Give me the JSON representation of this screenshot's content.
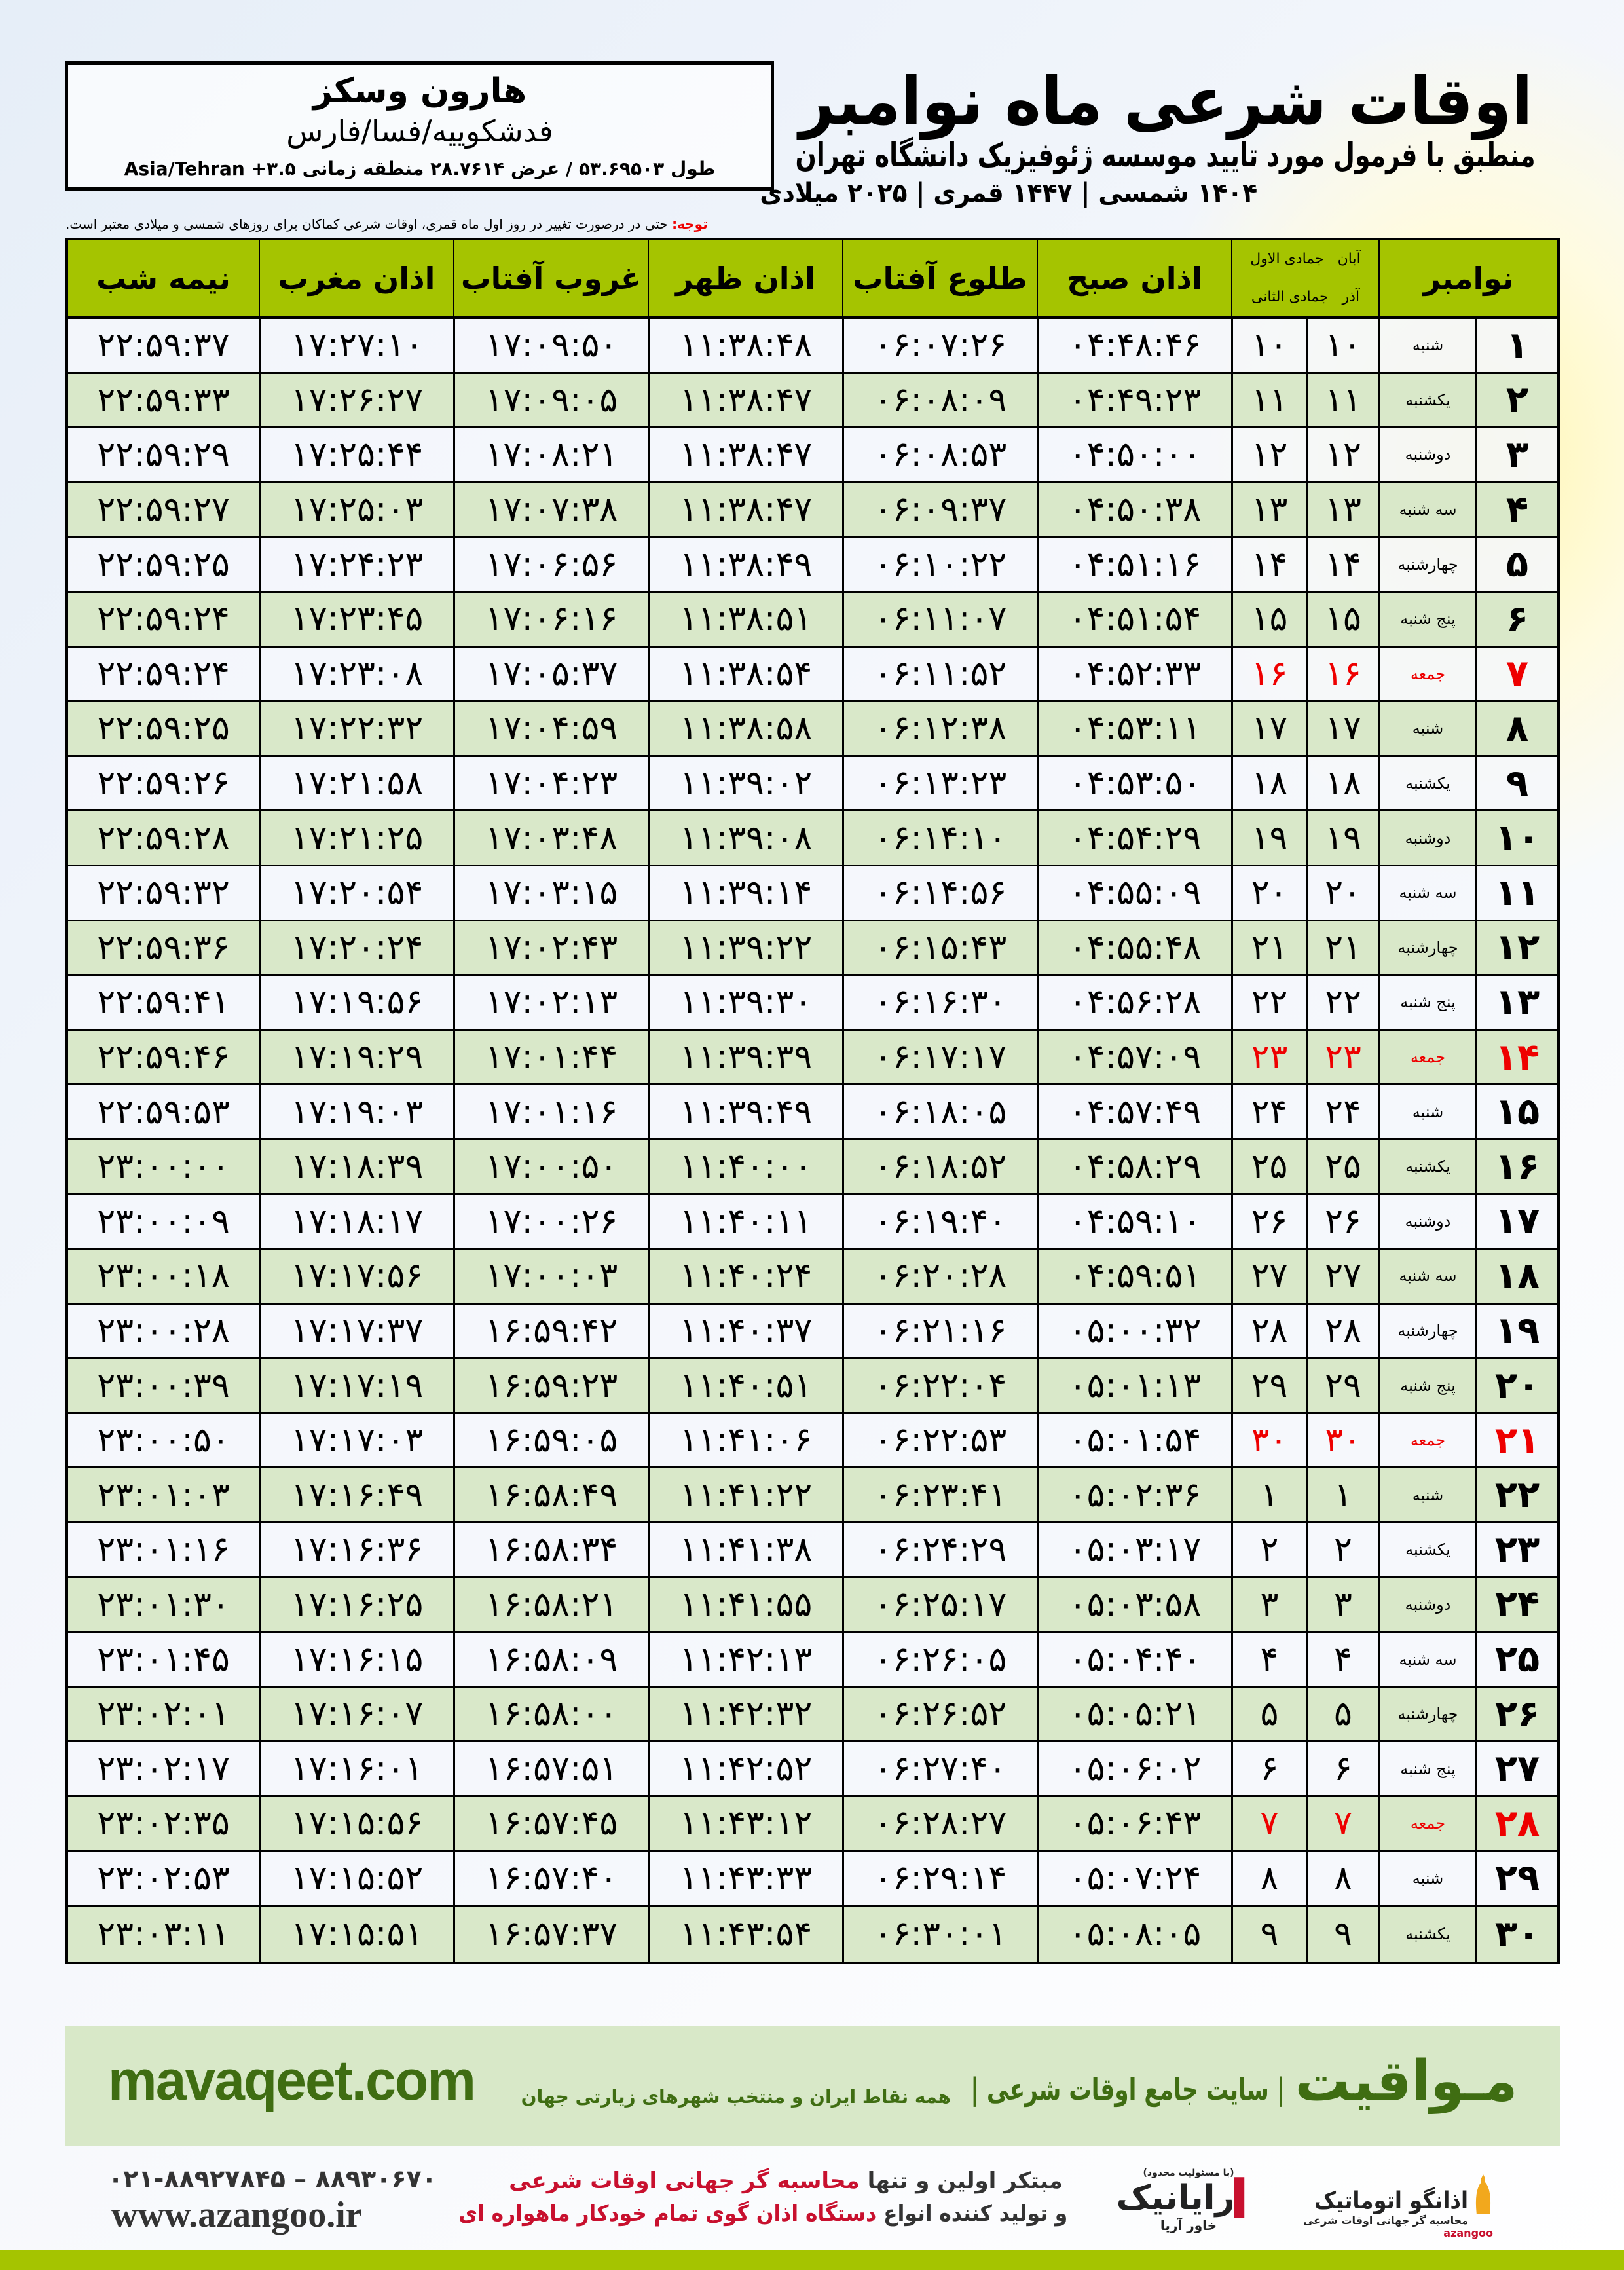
{
  "header": {
    "title": "اوقات شرعی ماه نوامبر",
    "subtitle": "منطبق با فرمول مورد تایید موسسه ژئوفیزیک دانشگاه تهران",
    "years": "۱۴۰۴ شمسی | ۱۴۴۷ قمری | ۲۰۲۵ میلادی"
  },
  "location": {
    "name": "هارون وسکز",
    "place": "فدشکوییه/فسا/فارس",
    "coords": "طول ۵۳.۶۹۵۰۳ / عرض ۲۸.۷۶۱۴ منطقه زمانی ۳.۵+ Asia/Tehran"
  },
  "note": {
    "label": "توجه:",
    "text": " حتی در درصورت تغییر در روز اول ماه قمری، اوقات شرعی کماکان برای روزهای شمسی و میلادی معتبر است."
  },
  "colors": {
    "header_green": "#a5c400",
    "row_alt": "#d9e8c9",
    "friday": "#ee0000",
    "brand_green": "#3f6d12"
  },
  "table": {
    "headers": {
      "day": "نوامبر",
      "solar_top": "آبان",
      "lunar_top": "جمادی الاول",
      "solar_bottom": "آذر",
      "lunar_bottom": "جمادی الثانی",
      "fajr": "اذان صبح",
      "sunrise": "طلوع آفتاب",
      "dhuhr": "اذان ظهر",
      "sunset": "غروب آفتاب",
      "maghrib": "اذان مغرب",
      "midnight": "نیمه شب"
    },
    "rows": [
      {
        "day": "۱",
        "weekday": "شنبه",
        "solar": "۱۰",
        "lunar": "۱۰",
        "fajr": "۰۴:۴۸:۴۶",
        "sunrise": "۰۶:۰۷:۲۶",
        "dhuhr": "۱۱:۳۸:۴۸",
        "sunset": "۱۷:۰۹:۵۰",
        "maghrib": "۱۷:۲۷:۱۰",
        "midnight": "۲۲:۵۹:۳۷",
        "friday": false
      },
      {
        "day": "۲",
        "weekday": "یکشنبه",
        "solar": "۱۱",
        "lunar": "۱۱",
        "fajr": "۰۴:۴۹:۲۳",
        "sunrise": "۰۶:۰۸:۰۹",
        "dhuhr": "۱۱:۳۸:۴۷",
        "sunset": "۱۷:۰۹:۰۵",
        "maghrib": "۱۷:۲۶:۲۷",
        "midnight": "۲۲:۵۹:۳۳",
        "friday": false
      },
      {
        "day": "۳",
        "weekday": "دوشنبه",
        "solar": "۱۲",
        "lunar": "۱۲",
        "fajr": "۰۴:۵۰:۰۰",
        "sunrise": "۰۶:۰۸:۵۳",
        "dhuhr": "۱۱:۳۸:۴۷",
        "sunset": "۱۷:۰۸:۲۱",
        "maghrib": "۱۷:۲۵:۴۴",
        "midnight": "۲۲:۵۹:۲۹",
        "friday": false
      },
      {
        "day": "۴",
        "weekday": "سه شنبه",
        "solar": "۱۳",
        "lunar": "۱۳",
        "fajr": "۰۴:۵۰:۳۸",
        "sunrise": "۰۶:۰۹:۳۷",
        "dhuhr": "۱۱:۳۸:۴۷",
        "sunset": "۱۷:۰۷:۳۸",
        "maghrib": "۱۷:۲۵:۰۳",
        "midnight": "۲۲:۵۹:۲۷",
        "friday": false
      },
      {
        "day": "۵",
        "weekday": "چهارشنبه",
        "solar": "۱۴",
        "lunar": "۱۴",
        "fajr": "۰۴:۵۱:۱۶",
        "sunrise": "۰۶:۱۰:۲۲",
        "dhuhr": "۱۱:۳۸:۴۹",
        "sunset": "۱۷:۰۶:۵۶",
        "maghrib": "۱۷:۲۴:۲۳",
        "midnight": "۲۲:۵۹:۲۵",
        "friday": false
      },
      {
        "day": "۶",
        "weekday": "پنج شنبه",
        "solar": "۱۵",
        "lunar": "۱۵",
        "fajr": "۰۴:۵۱:۵۴",
        "sunrise": "۰۶:۱۱:۰۷",
        "dhuhr": "۱۱:۳۸:۵۱",
        "sunset": "۱۷:۰۶:۱۶",
        "maghrib": "۱۷:۲۳:۴۵",
        "midnight": "۲۲:۵۹:۲۴",
        "friday": false
      },
      {
        "day": "۷",
        "weekday": "جمعه",
        "solar": "۱۶",
        "lunar": "۱۶",
        "fajr": "۰۴:۵۲:۳۳",
        "sunrise": "۰۶:۱۱:۵۲",
        "dhuhr": "۱۱:۳۸:۵۴",
        "sunset": "۱۷:۰۵:۳۷",
        "maghrib": "۱۷:۲۳:۰۸",
        "midnight": "۲۲:۵۹:۲۴",
        "friday": true
      },
      {
        "day": "۸",
        "weekday": "شنبه",
        "solar": "۱۷",
        "lunar": "۱۷",
        "fajr": "۰۴:۵۳:۱۱",
        "sunrise": "۰۶:۱۲:۳۸",
        "dhuhr": "۱۱:۳۸:۵۸",
        "sunset": "۱۷:۰۴:۵۹",
        "maghrib": "۱۷:۲۲:۳۲",
        "midnight": "۲۲:۵۹:۲۵",
        "friday": false
      },
      {
        "day": "۹",
        "weekday": "یکشنبه",
        "solar": "۱۸",
        "lunar": "۱۸",
        "fajr": "۰۴:۵۳:۵۰",
        "sunrise": "۰۶:۱۳:۲۳",
        "dhuhr": "۱۱:۳۹:۰۲",
        "sunset": "۱۷:۰۴:۲۳",
        "maghrib": "۱۷:۲۱:۵۸",
        "midnight": "۲۲:۵۹:۲۶",
        "friday": false
      },
      {
        "day": "۱۰",
        "weekday": "دوشنبه",
        "solar": "۱۹",
        "lunar": "۱۹",
        "fajr": "۰۴:۵۴:۲۹",
        "sunrise": "۰۶:۱۴:۱۰",
        "dhuhr": "۱۱:۳۹:۰۸",
        "sunset": "۱۷:۰۳:۴۸",
        "maghrib": "۱۷:۲۱:۲۵",
        "midnight": "۲۲:۵۹:۲۸",
        "friday": false
      },
      {
        "day": "۱۱",
        "weekday": "سه شنبه",
        "solar": "۲۰",
        "lunar": "۲۰",
        "fajr": "۰۴:۵۵:۰۹",
        "sunrise": "۰۶:۱۴:۵۶",
        "dhuhr": "۱۱:۳۹:۱۴",
        "sunset": "۱۷:۰۳:۱۵",
        "maghrib": "۱۷:۲۰:۵۴",
        "midnight": "۲۲:۵۹:۳۲",
        "friday": false
      },
      {
        "day": "۱۲",
        "weekday": "چهارشنبه",
        "solar": "۲۱",
        "lunar": "۲۱",
        "fajr": "۰۴:۵۵:۴۸",
        "sunrise": "۰۶:۱۵:۴۳",
        "dhuhr": "۱۱:۳۹:۲۲",
        "sunset": "۱۷:۰۲:۴۳",
        "maghrib": "۱۷:۲۰:۲۴",
        "midnight": "۲۲:۵۹:۳۶",
        "friday": false
      },
      {
        "day": "۱۳",
        "weekday": "پنج شنبه",
        "solar": "۲۲",
        "lunar": "۲۲",
        "fajr": "۰۴:۵۶:۲۸",
        "sunrise": "۰۶:۱۶:۳۰",
        "dhuhr": "۱۱:۳۹:۳۰",
        "sunset": "۱۷:۰۲:۱۳",
        "maghrib": "۱۷:۱۹:۵۶",
        "midnight": "۲۲:۵۹:۴۱",
        "friday": false
      },
      {
        "day": "۱۴",
        "weekday": "جمعه",
        "solar": "۲۳",
        "lunar": "۲۳",
        "fajr": "۰۴:۵۷:۰۹",
        "sunrise": "۰۶:۱۷:۱۷",
        "dhuhr": "۱۱:۳۹:۳۹",
        "sunset": "۱۷:۰۱:۴۴",
        "maghrib": "۱۷:۱۹:۲۹",
        "midnight": "۲۲:۵۹:۴۶",
        "friday": true
      },
      {
        "day": "۱۵",
        "weekday": "شنبه",
        "solar": "۲۴",
        "lunar": "۲۴",
        "fajr": "۰۴:۵۷:۴۹",
        "sunrise": "۰۶:۱۸:۰۵",
        "dhuhr": "۱۱:۳۹:۴۹",
        "sunset": "۱۷:۰۱:۱۶",
        "maghrib": "۱۷:۱۹:۰۳",
        "midnight": "۲۲:۵۹:۵۳",
        "friday": false
      },
      {
        "day": "۱۶",
        "weekday": "یکشنبه",
        "solar": "۲۵",
        "lunar": "۲۵",
        "fajr": "۰۴:۵۸:۲۹",
        "sunrise": "۰۶:۱۸:۵۲",
        "dhuhr": "۱۱:۴۰:۰۰",
        "sunset": "۱۷:۰۰:۵۰",
        "maghrib": "۱۷:۱۸:۳۹",
        "midnight": "۲۳:۰۰:۰۰",
        "friday": false
      },
      {
        "day": "۱۷",
        "weekday": "دوشنبه",
        "solar": "۲۶",
        "lunar": "۲۶",
        "fajr": "۰۴:۵۹:۱۰",
        "sunrise": "۰۶:۱۹:۴۰",
        "dhuhr": "۱۱:۴۰:۱۱",
        "sunset": "۱۷:۰۰:۲۶",
        "maghrib": "۱۷:۱۸:۱۷",
        "midnight": "۲۳:۰۰:۰۹",
        "friday": false
      },
      {
        "day": "۱۸",
        "weekday": "سه شنبه",
        "solar": "۲۷",
        "lunar": "۲۷",
        "fajr": "۰۴:۵۹:۵۱",
        "sunrise": "۰۶:۲۰:۲۸",
        "dhuhr": "۱۱:۴۰:۲۴",
        "sunset": "۱۷:۰۰:۰۳",
        "maghrib": "۱۷:۱۷:۵۶",
        "midnight": "۲۳:۰۰:۱۸",
        "friday": false
      },
      {
        "day": "۱۹",
        "weekday": "چهارشنبه",
        "solar": "۲۸",
        "lunar": "۲۸",
        "fajr": "۰۵:۰۰:۳۲",
        "sunrise": "۰۶:۲۱:۱۶",
        "dhuhr": "۱۱:۴۰:۳۷",
        "sunset": "۱۶:۵۹:۴۲",
        "maghrib": "۱۷:۱۷:۳۷",
        "midnight": "۲۳:۰۰:۲۸",
        "friday": false
      },
      {
        "day": "۲۰",
        "weekday": "پنج شنبه",
        "solar": "۲۹",
        "lunar": "۲۹",
        "fajr": "۰۵:۰۱:۱۳",
        "sunrise": "۰۶:۲۲:۰۴",
        "dhuhr": "۱۱:۴۰:۵۱",
        "sunset": "۱۶:۵۹:۲۳",
        "maghrib": "۱۷:۱۷:۱۹",
        "midnight": "۲۳:۰۰:۳۹",
        "friday": false
      },
      {
        "day": "۲۱",
        "weekday": "جمعه",
        "solar": "۳۰",
        "lunar": "۳۰",
        "fajr": "۰۵:۰۱:۵۴",
        "sunrise": "۰۶:۲۲:۵۳",
        "dhuhr": "۱۱:۴۱:۰۶",
        "sunset": "۱۶:۵۹:۰۵",
        "maghrib": "۱۷:۱۷:۰۳",
        "midnight": "۲۳:۰۰:۵۰",
        "friday": true
      },
      {
        "day": "۲۲",
        "weekday": "شنبه",
        "solar": "۱",
        "lunar": "۱",
        "fajr": "۰۵:۰۲:۳۶",
        "sunrise": "۰۶:۲۳:۴۱",
        "dhuhr": "۱۱:۴۱:۲۲",
        "sunset": "۱۶:۵۸:۴۹",
        "maghrib": "۱۷:۱۶:۴۹",
        "midnight": "۲۳:۰۱:۰۳",
        "friday": false
      },
      {
        "day": "۲۳",
        "weekday": "یکشنبه",
        "solar": "۲",
        "lunar": "۲",
        "fajr": "۰۵:۰۳:۱۷",
        "sunrise": "۰۶:۲۴:۲۹",
        "dhuhr": "۱۱:۴۱:۳۸",
        "sunset": "۱۶:۵۸:۳۴",
        "maghrib": "۱۷:۱۶:۳۶",
        "midnight": "۲۳:۰۱:۱۶",
        "friday": false
      },
      {
        "day": "۲۴",
        "weekday": "دوشنبه",
        "solar": "۳",
        "lunar": "۳",
        "fajr": "۰۵:۰۳:۵۸",
        "sunrise": "۰۶:۲۵:۱۷",
        "dhuhr": "۱۱:۴۱:۵۵",
        "sunset": "۱۶:۵۸:۲۱",
        "maghrib": "۱۷:۱۶:۲۵",
        "midnight": "۲۳:۰۱:۳۰",
        "friday": false
      },
      {
        "day": "۲۵",
        "weekday": "سه شنبه",
        "solar": "۴",
        "lunar": "۴",
        "fajr": "۰۵:۰۴:۴۰",
        "sunrise": "۰۶:۲۶:۰۵",
        "dhuhr": "۱۱:۴۲:۱۳",
        "sunset": "۱۶:۵۸:۰۹",
        "maghrib": "۱۷:۱۶:۱۵",
        "midnight": "۲۳:۰۱:۴۵",
        "friday": false
      },
      {
        "day": "۲۶",
        "weekday": "چهارشنبه",
        "solar": "۵",
        "lunar": "۵",
        "fajr": "۰۵:۰۵:۲۱",
        "sunrise": "۰۶:۲۶:۵۲",
        "dhuhr": "۱۱:۴۲:۳۲",
        "sunset": "۱۶:۵۸:۰۰",
        "maghrib": "۱۷:۱۶:۰۷",
        "midnight": "۲۳:۰۲:۰۱",
        "friday": false
      },
      {
        "day": "۲۷",
        "weekday": "پنج شنبه",
        "solar": "۶",
        "lunar": "۶",
        "fajr": "۰۵:۰۶:۰۲",
        "sunrise": "۰۶:۲۷:۴۰",
        "dhuhr": "۱۱:۴۲:۵۲",
        "sunset": "۱۶:۵۷:۵۱",
        "maghrib": "۱۷:۱۶:۰۱",
        "midnight": "۲۳:۰۲:۱۷",
        "friday": false
      },
      {
        "day": "۲۸",
        "weekday": "جمعه",
        "solar": "۷",
        "lunar": "۷",
        "fajr": "۰۵:۰۶:۴۳",
        "sunrise": "۰۶:۲۸:۲۷",
        "dhuhr": "۱۱:۴۳:۱۲",
        "sunset": "۱۶:۵۷:۴۵",
        "maghrib": "۱۷:۱۵:۵۶",
        "midnight": "۲۳:۰۲:۳۵",
        "friday": true
      },
      {
        "day": "۲۹",
        "weekday": "شنبه",
        "solar": "۸",
        "lunar": "۸",
        "fajr": "۰۵:۰۷:۲۴",
        "sunrise": "۰۶:۲۹:۱۴",
        "dhuhr": "۱۱:۴۳:۳۳",
        "sunset": "۱۶:۵۷:۴۰",
        "maghrib": "۱۷:۱۵:۵۲",
        "midnight": "۲۳:۰۲:۵۳",
        "friday": false
      },
      {
        "day": "۳۰",
        "weekday": "یکشنبه",
        "solar": "۹",
        "lunar": "۹",
        "fajr": "۰۵:۰۸:۰۵",
        "sunrise": "۰۶:۳۰:۰۱",
        "dhuhr": "۱۱:۴۳:۵۴",
        "sunset": "۱۶:۵۷:۳۷",
        "maghrib": "۱۷:۱۵:۵۱",
        "midnight": "۲۳:۰۳:۱۱",
        "friday": false
      }
    ]
  },
  "footer": {
    "brand": "مـواقیت",
    "tagline": "| سایت جامع اوقات شرعی |",
    "tag_sub": "همه نقاط ایران و منتخب شهرهای زیارتی جهان",
    "url": "mavaqeet.com",
    "phone": "۰۲۱-۸۸۹۲۷۸۴۵ – ۸۸۹۳۰۶۷۰",
    "website": "www.azangoo.ir",
    "promo1_a": "مبتکر اولین و تنها ",
    "promo1_b": "محاسبه گر جهانی اوقات شرعی",
    "promo2_a": "و تولید کننده انواع ",
    "promo2_b": "دستگاه اذان گوی تمام خودکار ماهواره ای",
    "rayanik_note": "(با مسئولیت محدود)",
    "rayanik": "رایانیک",
    "rayanik_sub": "خاور آریا",
    "azangoo": "اذانگو اتوماتیک",
    "azangoo_sub": "محاسبه گر جهانی اوقات شرعی",
    "azangoo_en": "azangoo"
  }
}
